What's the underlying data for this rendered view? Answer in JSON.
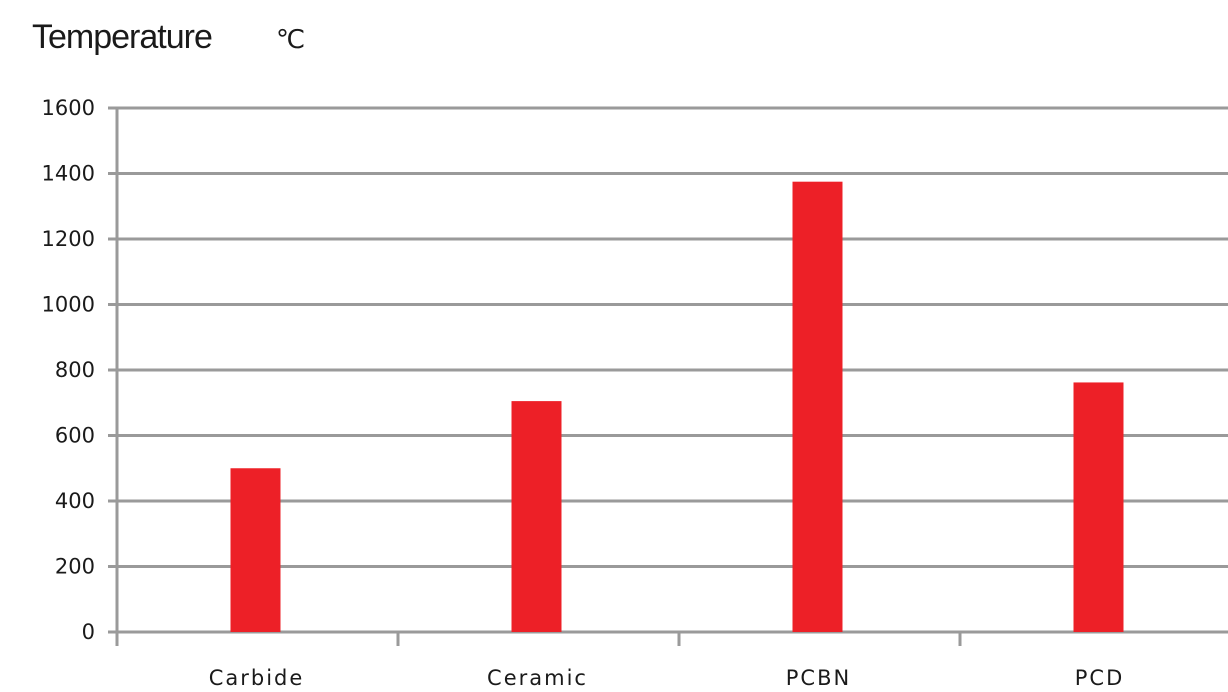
{
  "chart_data": {
    "type": "bar",
    "title": "Temperature",
    "unit": "℃",
    "categories": [
      "Carbide",
      "Ceramic",
      "PCBN",
      "PCD"
    ],
    "values": [
      500,
      705,
      1375,
      762
    ],
    "ylim": [
      0,
      1600
    ],
    "yticks": [
      "0",
      "200",
      "400",
      "600",
      "800",
      "1000",
      "1200",
      "1400",
      "1600"
    ],
    "grid": true,
    "bar_color": "#ed2027"
  }
}
